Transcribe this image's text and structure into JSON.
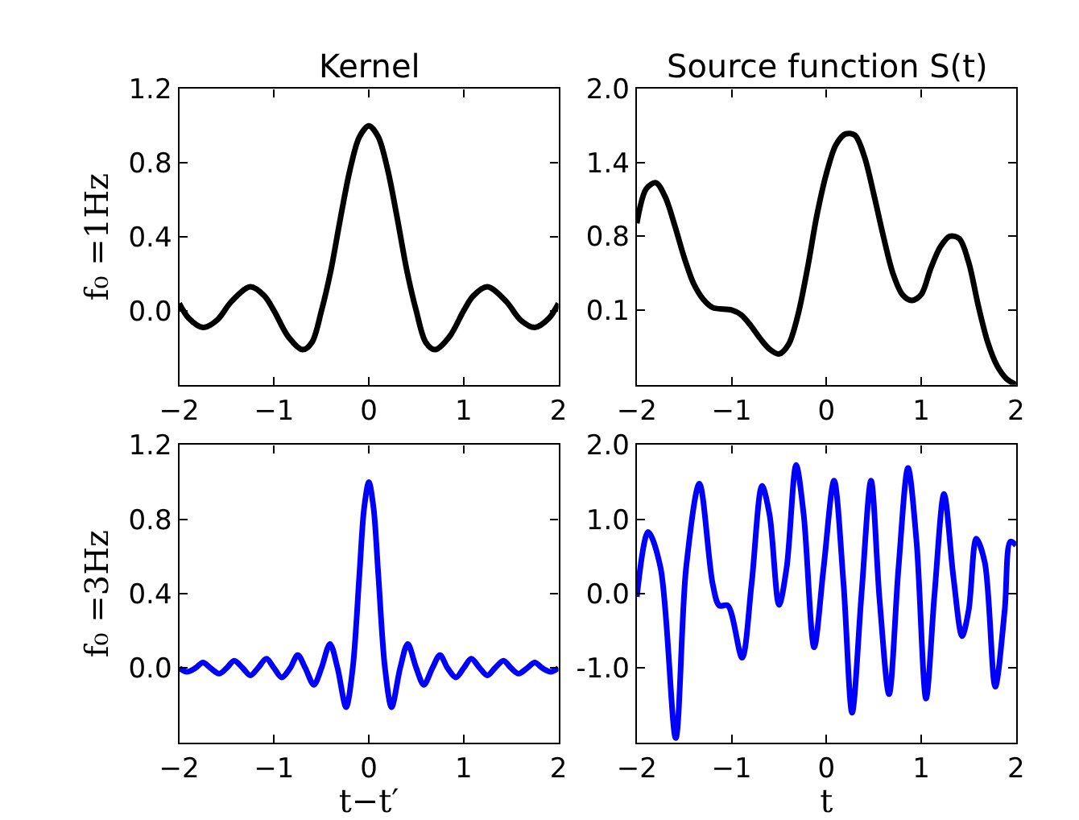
{
  "chart_data": [
    {
      "type": "line",
      "title": "Kernel",
      "ylabel": "f₀ =1Hz",
      "xlim": [
        -2,
        2
      ],
      "xticks": [
        -2,
        -1,
        0,
        1,
        2
      ],
      "ylim": [
        -0.4,
        1.2
      ],
      "yticks": [
        {
          "value": 0.0,
          "label": "0.0"
        },
        {
          "value": 0.4,
          "label": "0.4"
        },
        {
          "value": 0.8,
          "label": "0.8"
        },
        {
          "value": 1.2,
          "label": "1.2"
        }
      ],
      "x": [
        -2,
        -1.9,
        -1.75,
        -1.6,
        -1.45,
        -1.25,
        -1.1,
        -1.0,
        -0.85,
        -0.7,
        -0.6,
        -0.5,
        -0.4,
        -0.3,
        -0.2,
        -0.1,
        0,
        0.1,
        0.2,
        0.3,
        0.4,
        0.5,
        0.6,
        0.7,
        0.85,
        1.0,
        1.1,
        1.25,
        1.45,
        1.6,
        1.75,
        1.9,
        2
      ],
      "series": [
        {
          "color": "#000000",
          "values": [
            0.04,
            -0.04,
            -0.09,
            -0.05,
            0.05,
            0.13,
            0.08,
            0.0,
            -0.14,
            -0.21,
            -0.17,
            0.0,
            0.22,
            0.5,
            0.76,
            0.94,
            1.0,
            0.94,
            0.76,
            0.5,
            0.22,
            0.0,
            -0.17,
            -0.21,
            -0.14,
            0.0,
            0.08,
            0.13,
            0.05,
            -0.05,
            -0.09,
            -0.04,
            0.04
          ]
        }
      ]
    },
    {
      "type": "line",
      "title": "Source function S(t)",
      "xlim": [
        -2,
        2
      ],
      "xticks": [
        -2,
        -1,
        0,
        1,
        2
      ],
      "ylim": [
        -0.49,
        2.0
      ],
      "yticks": [
        {
          "value": 0.14,
          "label": "0.1"
        },
        {
          "value": 0.76,
          "label": "0.8"
        },
        {
          "value": 1.38,
          "label": "1.4"
        },
        {
          "value": 2.0,
          "label": "2.0"
        }
      ],
      "x": [
        -2,
        -1.9,
        -1.8,
        -1.7,
        -1.6,
        -1.5,
        -1.4,
        -1.3,
        -1.2,
        -1.0,
        -0.9,
        -0.8,
        -0.7,
        -0.6,
        -0.5,
        -0.4,
        -0.3,
        -0.2,
        -0.1,
        0,
        0.1,
        0.2,
        0.3,
        0.4,
        0.5,
        0.6,
        0.7,
        0.8,
        0.9,
        1.0,
        1.1,
        1.2,
        1.3,
        1.4,
        1.5,
        1.6,
        1.7,
        1.8,
        1.9,
        2.0
      ],
      "series": [
        {
          "color": "#000000",
          "values": [
            0.87,
            1.16,
            1.21,
            1.09,
            0.85,
            0.58,
            0.36,
            0.23,
            0.16,
            0.14,
            0.1,
            0.01,
            -0.1,
            -0.19,
            -0.23,
            -0.15,
            0.1,
            0.49,
            0.94,
            1.29,
            1.53,
            1.62,
            1.61,
            1.43,
            1.11,
            0.76,
            0.45,
            0.27,
            0.22,
            0.27,
            0.49,
            0.67,
            0.76,
            0.74,
            0.54,
            0.18,
            -0.13,
            -0.33,
            -0.44,
            -0.49
          ]
        }
      ]
    },
    {
      "type": "line",
      "ylabel": "f₀ =3Hz",
      "xlabel": "t−t′",
      "xlim": [
        -2,
        2
      ],
      "xticks": [
        -2,
        -1,
        0,
        1,
        2
      ],
      "ylim": [
        -0.4,
        1.2
      ],
      "yticks": [
        {
          "value": 0.0,
          "label": "0.0"
        },
        {
          "value": 0.4,
          "label": "0.4"
        },
        {
          "value": 0.8,
          "label": "0.8"
        },
        {
          "value": 1.2,
          "label": "1.2"
        }
      ],
      "x": [
        -2,
        -1.92,
        -1.83,
        -1.75,
        -1.67,
        -1.58,
        -1.5,
        -1.42,
        -1.33,
        -1.25,
        -1.17,
        -1.08,
        -1.0,
        -0.92,
        -0.83,
        -0.75,
        -0.67,
        -0.58,
        -0.5,
        -0.41,
        -0.33,
        -0.24,
        -0.17,
        -0.1,
        -0.05,
        0,
        0.05,
        0.1,
        0.17,
        0.24,
        0.33,
        0.41,
        0.5,
        0.58,
        0.67,
        0.75,
        0.83,
        0.92,
        1.0,
        1.08,
        1.17,
        1.25,
        1.33,
        1.42,
        1.5,
        1.58,
        1.67,
        1.75,
        1.83,
        1.92,
        2
      ],
      "series": [
        {
          "color": "#0000ff",
          "values": [
            0.0,
            -0.02,
            0.0,
            0.03,
            0.0,
            -0.03,
            0.0,
            0.04,
            0.0,
            -0.04,
            0.0,
            0.05,
            0.0,
            -0.05,
            0.0,
            0.07,
            0.0,
            -0.09,
            0.0,
            0.13,
            0.0,
            -0.21,
            0.0,
            0.5,
            0.86,
            1.0,
            0.86,
            0.5,
            0.0,
            -0.21,
            0.0,
            0.13,
            0.0,
            -0.09,
            0.0,
            0.07,
            0.0,
            -0.05,
            0.0,
            0.05,
            0.0,
            -0.04,
            0.0,
            0.04,
            0.0,
            -0.03,
            0.0,
            0.03,
            0.0,
            -0.02,
            0.0
          ]
        }
      ]
    },
    {
      "type": "line",
      "xlabel": "t",
      "xlim": [
        -2,
        2
      ],
      "xticks": [
        -2,
        -1,
        0,
        1,
        2
      ],
      "ylim": [
        -2.0,
        2.0
      ],
      "yticks": [
        {
          "value": -1.0,
          "label": "-1.0"
        },
        {
          "value": 0.0,
          "label": "0.0"
        },
        {
          "value": 1.0,
          "label": "1.0"
        },
        {
          "value": 2.0,
          "label": "2.0"
        }
      ],
      "x": [
        -2,
        -1.88,
        -1.75,
        -1.59,
        -1.48,
        -1.34,
        -1.2,
        -1.13,
        -1.04,
        -0.89,
        -0.79,
        -0.68,
        -0.6,
        -0.5,
        -0.42,
        -0.32,
        -0.24,
        -0.13,
        -0.03,
        0.08,
        0.18,
        0.27,
        0.37,
        0.47,
        0.56,
        0.66,
        0.76,
        0.86,
        0.95,
        1.05,
        1.14,
        1.24,
        1.34,
        1.43,
        1.5,
        1.58,
        1.67,
        1.78,
        1.88,
        1.94,
        2.0
      ],
      "series": [
        {
          "color": "#0000ff",
          "values": [
            -0.04,
            0.83,
            0.35,
            -1.94,
            0.35,
            1.48,
            0.13,
            -0.16,
            -0.16,
            -0.86,
            0.13,
            1.45,
            1.06,
            -0.15,
            0.35,
            1.73,
            1.06,
            -0.72,
            0.35,
            1.52,
            0.13,
            -1.6,
            0.0,
            1.52,
            -0.08,
            -1.35,
            0.35,
            1.69,
            0.7,
            -1.41,
            0.0,
            1.34,
            0.21,
            -0.57,
            -0.22,
            0.74,
            0.42,
            -1.25,
            -0.22,
            0.7,
            0.65
          ]
        }
      ]
    }
  ]
}
